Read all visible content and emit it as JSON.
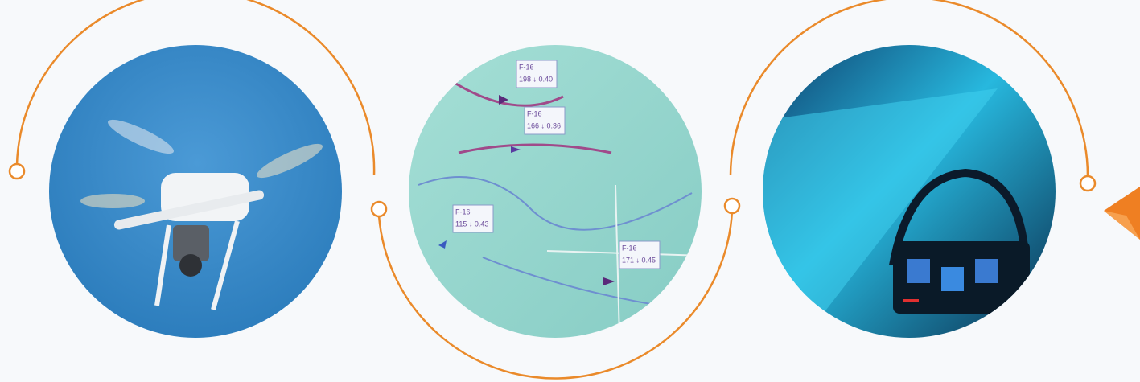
{
  "map_tags": [
    {
      "name": "F-16",
      "reading": "198 ↓ 0.40"
    },
    {
      "name": "F-16",
      "reading": "166 ↓ 0.36"
    },
    {
      "name": "F-16",
      "reading": "115 ↓ 0.43"
    },
    {
      "name": "F-16",
      "reading": "171 ↓ 0.45"
    }
  ]
}
